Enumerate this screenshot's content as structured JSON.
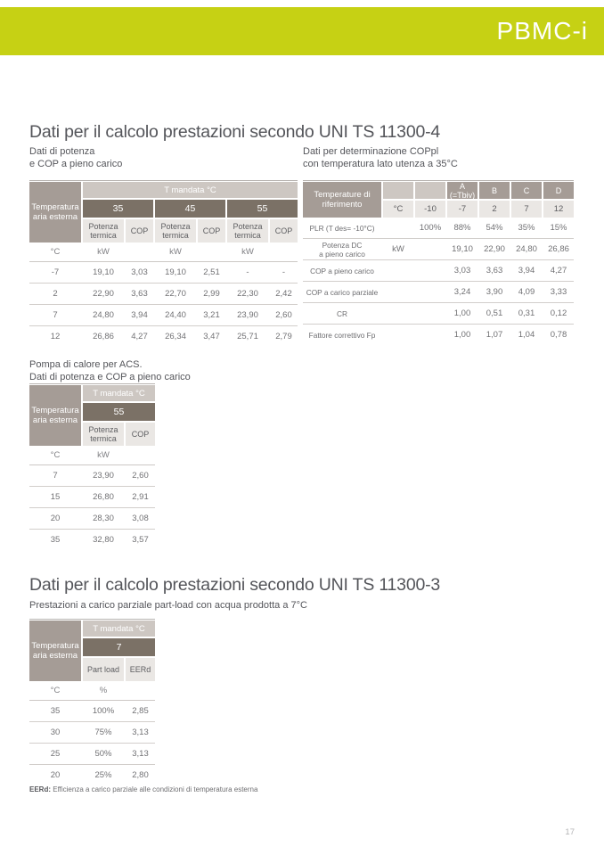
{
  "page": {
    "brand": "PBMC-i",
    "page_number": "17",
    "accent_color": "#c6d114"
  },
  "section1": {
    "title": "Dati per il calcolo prestazioni secondo UNI TS 11300-4",
    "left_table": {
      "subtitle_line1": "Dati di potenza",
      "subtitle_line2": "e COP a pieno carico",
      "corner_header": "Temperatura aria esterna",
      "band_header": "T mandata °C",
      "temp_groups": [
        "35",
        "45",
        "55"
      ],
      "sub_headers": [
        "Potenza termica",
        "COP"
      ],
      "units_row": [
        "°C",
        "kW",
        "",
        "kW",
        "",
        "kW",
        ""
      ],
      "rows": [
        [
          "-7",
          "19,10",
          "3,03",
          "19,10",
          "2,51",
          "-",
          "-"
        ],
        [
          "2",
          "22,90",
          "3,63",
          "22,70",
          "2,99",
          "22,30",
          "2,42"
        ],
        [
          "7",
          "24,80",
          "3,94",
          "24,40",
          "3,21",
          "23,90",
          "2,60"
        ],
        [
          "12",
          "26,86",
          "4,27",
          "26,34",
          "3,47",
          "25,71",
          "2,79"
        ]
      ]
    },
    "right_table": {
      "subtitle_line1": "Dati per determinazione COPpl",
      "subtitle_line2": "con temperatura lato utenza a 35°C",
      "corner_header": "Temperature di riferimento",
      "col_headers": [
        "",
        "",
        "A (=Tbiv)",
        "B",
        "C",
        "D"
      ],
      "col_values": [
        "°C",
        "-10",
        "-7",
        "2",
        "7",
        "12"
      ],
      "rows": [
        [
          "PLR (T des= -10°C)",
          "",
          "100%",
          "88%",
          "54%",
          "35%",
          "15%"
        ],
        [
          "Potenza DC\na pieno carico",
          "kW",
          "",
          "19,10",
          "22,90",
          "24,80",
          "26,86"
        ],
        [
          "COP a pieno carico",
          "",
          "",
          "3,03",
          "3,63",
          "3,94",
          "4,27"
        ],
        [
          "COP a carico parziale",
          "",
          "",
          "3,24",
          "3,90",
          "4,09",
          "3,33"
        ],
        [
          "CR",
          "",
          "",
          "1,00",
          "0,51",
          "0,31",
          "0,12"
        ],
        [
          "Fattore correttivo Fp",
          "",
          "",
          "1,00",
          "1,07",
          "1,04",
          "0,78"
        ]
      ]
    },
    "acs_table": {
      "subtitle_line1": "Pompa di calore per ACS.",
      "subtitle_line2": "Dati di potenza e COP a pieno carico",
      "corner_header": "Temperatura aria esterna",
      "band_header": "T mandata °C",
      "temp_value": "55",
      "sub_headers": [
        "Potenza termica",
        "COP"
      ],
      "units_row": [
        "°C",
        "kW",
        ""
      ],
      "rows": [
        [
          "7",
          "23,90",
          "2,60"
        ],
        [
          "15",
          "26,80",
          "2,91"
        ],
        [
          "20",
          "28,30",
          "3,08"
        ],
        [
          "35",
          "32,80",
          "3,57"
        ]
      ]
    }
  },
  "section2": {
    "title": "Dati per il calcolo prestazioni secondo UNI TS 11300-3",
    "subtitle": "Prestazioni a carico parziale part-load con acqua prodotta a 7°C",
    "table": {
      "corner_header": "Temperatura aria esterna",
      "band_header": "T mandata °C",
      "temp_value": "7",
      "sub_headers": [
        "Part load",
        "EERd"
      ],
      "units_row": [
        "°C",
        "%",
        ""
      ],
      "rows": [
        [
          "35",
          "100%",
          "2,85"
        ],
        [
          "30",
          "75%",
          "3,13"
        ],
        [
          "25",
          "50%",
          "3,13"
        ],
        [
          "20",
          "25%",
          "2,80"
        ]
      ]
    },
    "footnote_term": "EERd:",
    "footnote_text": "Efficienza a carico parziale alle condizioni di temperatura esterna"
  }
}
